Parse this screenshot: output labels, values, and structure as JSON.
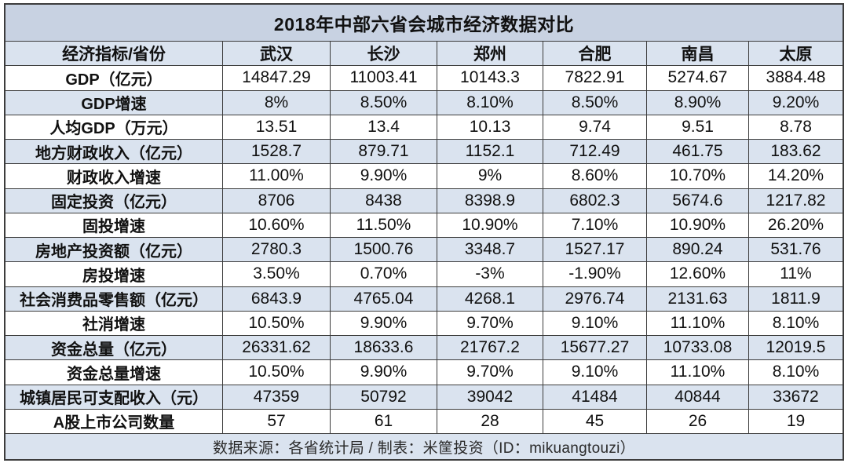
{
  "chart_data": {
    "type": "table",
    "title": "2018年中部六省会城市经济数据对比",
    "columns": [
      "经济指标/省份",
      "武汉",
      "长沙",
      "郑州",
      "合肥",
      "南昌",
      "太原"
    ],
    "rows": [
      {
        "label": "GDP（亿元）",
        "values": [
          "14847.29",
          "11003.41",
          "10143.3",
          "7822.91",
          "5274.67",
          "3884.48"
        ]
      },
      {
        "label": "GDP增速",
        "values": [
          "8%",
          "8.50%",
          "8.10%",
          "8.50%",
          "8.90%",
          "9.20%"
        ]
      },
      {
        "label": "人均GDP（万元）",
        "values": [
          "13.51",
          "13.4",
          "10.13",
          "9.74",
          "9.51",
          "8.78"
        ]
      },
      {
        "label": "地方财政收入（亿元）",
        "values": [
          "1528.7",
          "879.71",
          "1152.1",
          "712.49",
          "461.75",
          "183.62"
        ]
      },
      {
        "label": "财政收入增速",
        "values": [
          "11.00%",
          "9.90%",
          "9%",
          "8.60%",
          "10.70%",
          "14.20%"
        ]
      },
      {
        "label": "固定投资（亿元）",
        "values": [
          "8706",
          "8438",
          "8398.9",
          "6802.3",
          "5674.6",
          "1217.82"
        ]
      },
      {
        "label": "固投增速",
        "values": [
          "10.60%",
          "11.50%",
          "10.90%",
          "7.10%",
          "10.90%",
          "26.20%"
        ]
      },
      {
        "label": "房地产投资额（亿元）",
        "values": [
          "2780.3",
          "1500.76",
          "3348.7",
          "1527.17",
          "890.24",
          "531.76"
        ]
      },
      {
        "label": "房投增速",
        "values": [
          "3.50%",
          "0.70%",
          "-3%",
          "-1.90%",
          "12.60%",
          "11%"
        ]
      },
      {
        "label": "社会消费品零售额（亿元）",
        "values": [
          "6843.9",
          "4765.04",
          "4268.1",
          "2976.74",
          "2131.63",
          "1811.9"
        ]
      },
      {
        "label": "社消增速",
        "values": [
          "10.50%",
          "9.90%",
          "9.70%",
          "9.10%",
          "11.10%",
          "8.10%"
        ]
      },
      {
        "label": "资金总量（亿元）",
        "values": [
          "26331.62",
          "18633.6",
          "21767.2",
          "15677.27",
          "10733.08",
          "12019.5"
        ]
      },
      {
        "label": "资金总量增速",
        "values": [
          "10.50%",
          "9.90%",
          "9.70%",
          "9.10%",
          "11.10%",
          "8.10%"
        ]
      },
      {
        "label": "城镇居民可支配收入（元）",
        "values": [
          "47359",
          "50792",
          "39042",
          "41484",
          "40844",
          "33672"
        ]
      },
      {
        "label": "A股上市公司数量",
        "values": [
          "57",
          "61",
          "28",
          "45",
          "26",
          "19"
        ]
      }
    ],
    "source": "数据来源：各省统计局 / 制表：米筐投资（ID：mikuangtouzi）"
  },
  "colors": {
    "title_bg": "#c8d2e2",
    "band_bg": "#dae3ef",
    "plain_bg": "#ffffff",
    "border": "#3c3c3c",
    "text": "#111111"
  }
}
